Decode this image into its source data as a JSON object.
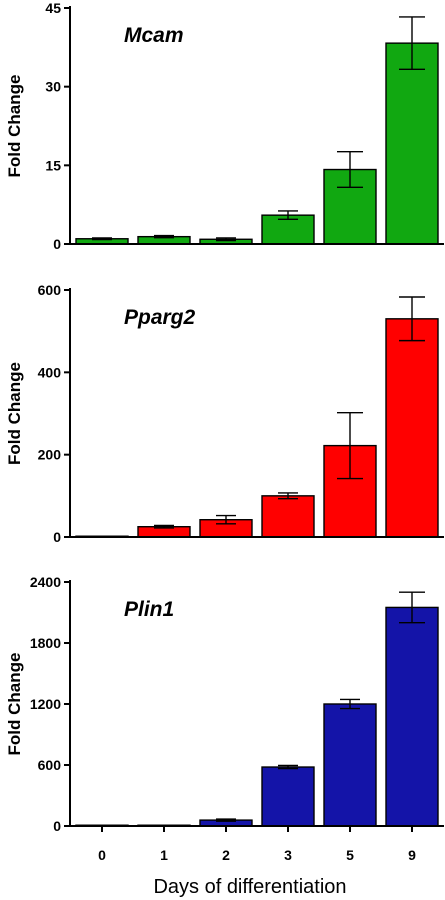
{
  "x_axis_title": "Days of differentiation",
  "chart_data": [
    {
      "type": "bar",
      "title": "Mcam",
      "categories": [
        "0",
        "1",
        "2",
        "3",
        "5",
        "9"
      ],
      "values": [
        1.0,
        1.4,
        0.9,
        5.5,
        14.2,
        38.3
      ],
      "errors": [
        0.15,
        0.2,
        0.25,
        0.8,
        3.4,
        5.0
      ],
      "ylabel": "Fold Change",
      "ylim": [
        0,
        45
      ],
      "yticks": [
        "0",
        "15",
        "30",
        "45"
      ],
      "color": "#11a811",
      "show_xticks": false
    },
    {
      "type": "bar",
      "title": "Pparg2",
      "categories": [
        "0",
        "1",
        "2",
        "3",
        "5",
        "9"
      ],
      "values": [
        1,
        25,
        42,
        100,
        222,
        530
      ],
      "errors": [
        0,
        3,
        10,
        7,
        80,
        53
      ],
      "ylabel": "Fold Change",
      "ylim": [
        0,
        600
      ],
      "yticks": [
        "0",
        "200",
        "400",
        "600"
      ],
      "color": "#ff0000",
      "show_xticks": false
    },
    {
      "type": "bar",
      "title": "Plin1",
      "categories": [
        "0",
        "1",
        "2",
        "3",
        "5",
        "9"
      ],
      "values": [
        1,
        2,
        58,
        580,
        1200,
        2150
      ],
      "errors": [
        0,
        0,
        10,
        15,
        45,
        150
      ],
      "ylabel": "Fold Change",
      "ylim": [
        0,
        2400
      ],
      "yticks": [
        "0",
        "600",
        "1200",
        "1800",
        "2400"
      ],
      "color": "#1414a8",
      "show_xticks": true
    }
  ]
}
